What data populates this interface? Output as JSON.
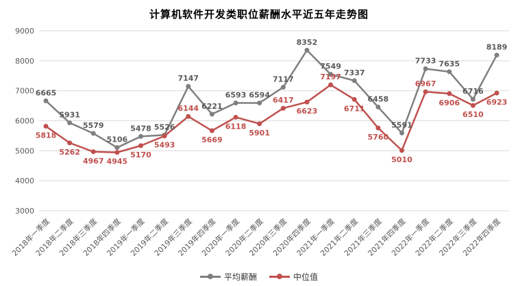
{
  "chart_data": {
    "type": "line",
    "title": "计算机软件开发类职位薪酬水平近五年走势图",
    "categories": [
      "2018年一季度",
      "2018年二季度",
      "2018年三季度",
      "2018年四季度",
      "2019年一季度",
      "2019年二季度",
      "2019年三季度",
      "2019年四季度",
      "2020年一季度",
      "2020年二季度",
      "2020年三季度",
      "2020年四季度",
      "2021年一季度",
      "2021年二季度",
      "2021年三季度",
      "2021年四季度",
      "2022年一季度",
      "2022年二季度",
      "2022年三季度",
      "2022年四季度"
    ],
    "series": [
      {
        "name": "平均薪酬",
        "color": "#7f7f7f",
        "label_color": "#595959",
        "values": [
          6665,
          5931,
          5579,
          5106,
          5478,
          5526,
          7147,
          6221,
          6593,
          6594,
          7117,
          8352,
          7549,
          7337,
          6458,
          5591,
          7733,
          7635,
          6716,
          8189
        ],
        "label_pos": [
          "above",
          "above",
          "above",
          "above",
          "above",
          "above",
          "above",
          "above",
          "above",
          "above",
          "above",
          "above",
          "above",
          "above",
          "above",
          "above",
          "above",
          "above",
          "above",
          "above"
        ]
      },
      {
        "name": "中位值",
        "color": "#c0504d",
        "label_color": "#c0504d",
        "values": [
          5818,
          5262,
          4967,
          4945,
          5170,
          5493,
          6144,
          5669,
          6118,
          5901,
          6417,
          6623,
          7197,
          6711,
          5760,
          5010,
          6967,
          6906,
          6510,
          6923
        ],
        "label_pos": [
          "below",
          "below",
          "below",
          "below",
          "below",
          "below",
          "above",
          "below",
          "below",
          "below",
          "above",
          "below",
          "above",
          "below",
          "below",
          "below",
          "above",
          "below",
          "below",
          "below"
        ]
      }
    ],
    "ylim": [
      3000,
      9000
    ],
    "y_ticks": [
      9000,
      8000,
      7000,
      6000,
      5000,
      4000,
      3000
    ],
    "xlabel": "",
    "ylabel": "",
    "grid": true,
    "grid_color": "#d9d9d9",
    "tick_color": "#595959",
    "legend_position": "bottom"
  }
}
